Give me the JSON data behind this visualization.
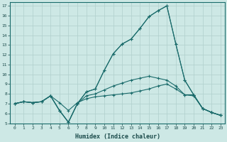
{
  "xlabel": "Humidex (Indice chaleur)",
  "bg_color": "#cde8e5",
  "line_color": "#1a6b6b",
  "grid_color": "#b0cfcc",
  "xlim": [
    -0.5,
    23.5
  ],
  "ylim": [
    5,
    17.4
  ],
  "xticks": [
    0,
    1,
    2,
    3,
    4,
    5,
    6,
    7,
    8,
    9,
    10,
    11,
    12,
    13,
    14,
    15,
    16,
    17,
    18,
    19,
    20,
    21,
    22,
    23
  ],
  "yticks": [
    5,
    6,
    7,
    8,
    9,
    10,
    11,
    12,
    13,
    14,
    15,
    16,
    17
  ],
  "series": [
    [
      7.0,
      7.2,
      7.1,
      7.2,
      7.8,
      7.1,
      6.3,
      7.1,
      7.5,
      7.7,
      7.8,
      7.9,
      8.0,
      8.1,
      8.3,
      8.5,
      8.8,
      9.0,
      8.5,
      7.9,
      7.8,
      6.5,
      6.1,
      5.8
    ],
    [
      7.0,
      7.2,
      7.1,
      7.2,
      7.8,
      6.3,
      5.1,
      7.0,
      8.2,
      8.5,
      10.4,
      12.1,
      13.1,
      13.6,
      14.7,
      15.9,
      16.5,
      17.0,
      13.1,
      9.4,
      7.9,
      6.5,
      6.1,
      5.8
    ],
    [
      7.0,
      7.2,
      7.1,
      7.2,
      7.8,
      6.3,
      5.1,
      7.0,
      8.2,
      8.5,
      10.4,
      12.1,
      13.1,
      13.6,
      14.7,
      15.9,
      16.5,
      17.0,
      13.1,
      9.4,
      7.9,
      6.5,
      6.1,
      5.8
    ],
    [
      7.0,
      7.2,
      7.1,
      7.2,
      7.8,
      6.3,
      5.1,
      7.0,
      7.8,
      8.0,
      8.4,
      8.8,
      9.1,
      9.4,
      9.6,
      9.8,
      9.6,
      9.4,
      8.8,
      7.9,
      7.9,
      6.5,
      6.1,
      5.8
    ]
  ]
}
